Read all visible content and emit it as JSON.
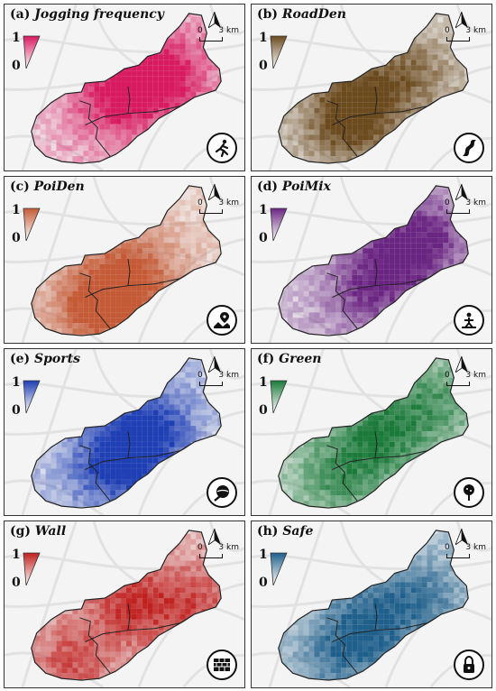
{
  "panels": [
    {
      "letter": "(a)",
      "name": "Jogging frequency",
      "max_label": "1",
      "min_label": "0",
      "scale_zero": "0",
      "scale_km": "3 km",
      "color": "#d81b60",
      "icon": "runner-icon"
    },
    {
      "letter": "(b)",
      "name": "RoadDen",
      "max_label": "1",
      "min_label": "0",
      "scale_zero": "0",
      "scale_km": "3 km",
      "color": "#6b4a1e",
      "icon": "winding-road-icon"
    },
    {
      "letter": "(c)",
      "name": "PoiDen",
      "max_label": "1",
      "min_label": "0",
      "scale_zero": "0",
      "scale_km": "3 km",
      "color": "#c45a36",
      "icon": "map-pin-icon"
    },
    {
      "letter": "(d)",
      "name": "PoiMix",
      "max_label": "1",
      "min_label": "0",
      "scale_zero": "0",
      "scale_km": "3 km",
      "color": "#6a2482",
      "icon": "crossroads-icon"
    },
    {
      "letter": "(e)",
      "name": "Sports",
      "max_label": "1",
      "min_label": "0",
      "scale_zero": "0",
      "scale_km": "3 km",
      "color": "#1f3fb5",
      "icon": "sports-ball-icon"
    },
    {
      "letter": "(f)",
      "name": "Green",
      "max_label": "1",
      "min_label": "0",
      "scale_zero": "0",
      "scale_km": "3 km",
      "color": "#1b7a3a",
      "icon": "tree-icon"
    },
    {
      "letter": "(g)",
      "name": "Wall",
      "max_label": "1",
      "min_label": "0",
      "scale_zero": "0",
      "scale_km": "3 km",
      "color": "#c0201e",
      "icon": "brick-wall-icon"
    },
    {
      "letter": "(h)",
      "name": "Safe",
      "max_label": "1",
      "min_label": "0",
      "scale_zero": "0",
      "scale_km": "3 km",
      "color": "#1f5f8b",
      "icon": "padlock-icon"
    }
  ]
}
